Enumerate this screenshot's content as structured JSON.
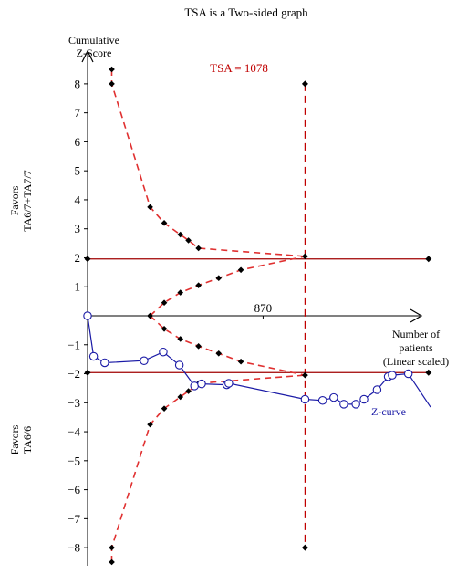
{
  "chart_data": {
    "type": "line",
    "title": "TSA is a Two-sided graph",
    "ylabel": "Cumulative Z-Score",
    "xlabel": "Number of patients (Linear scaled)",
    "xlabel_lines": [
      "Number of",
      "patients",
      "(Linear scaled)"
    ],
    "ylabel_lines": [
      "Cumulative",
      "Z-Score"
    ],
    "ylim": [
      -8.5,
      8.5
    ],
    "xlim": [
      0,
      1700
    ],
    "y_ticks": [
      8,
      7,
      6,
      5,
      4,
      3,
      2,
      1,
      -1,
      -2,
      -3,
      -4,
      -5,
      -6,
      -7,
      -8
    ],
    "x_tick_label": "870",
    "x_tick_value": 870,
    "tsa": {
      "label": "TSA = 1078",
      "value": 1078,
      "color": "#c00000"
    },
    "conventional_boundary": {
      "upper": 1.96,
      "lower": -1.96,
      "x_end": 1690,
      "color": "#a00000"
    },
    "favors_upper": [
      "Favors",
      "TA6/7+TA7/7"
    ],
    "favors_lower": [
      "Favors",
      "TA6/6"
    ],
    "upper_boundary": {
      "x": [
        120,
        120,
        310,
        380,
        460,
        500,
        550,
        1078
      ],
      "y": [
        8.5,
        8.0,
        3.75,
        3.2,
        2.8,
        2.6,
        2.33,
        2.05
      ]
    },
    "lower_boundary": {
      "x": [
        120,
        120,
        310,
        380,
        460,
        500,
        550,
        1078
      ],
      "y": [
        -8.5,
        -8.0,
        -3.75,
        -3.2,
        -2.8,
        -2.6,
        -2.33,
        -2.05
      ]
    },
    "futility_upper": {
      "x": [
        310,
        380,
        460,
        550,
        650,
        760,
        1078
      ],
      "y": [
        0.0,
        0.45,
        0.8,
        1.05,
        1.3,
        1.58,
        2.05
      ]
    },
    "futility_lower": {
      "x": [
        310,
        380,
        460,
        550,
        650,
        760,
        1078
      ],
      "y": [
        0.0,
        -0.45,
        -0.8,
        -1.05,
        -1.3,
        -1.58,
        -2.05
      ]
    },
    "z_curve": {
      "name": "Z-curve",
      "color": "#1a1aa6",
      "x": [
        0,
        30,
        85,
        280,
        375,
        455,
        530,
        565,
        690,
        700,
        1078,
        1165,
        1220,
        1270,
        1330,
        1370,
        1435,
        1490,
        1510,
        1590
      ],
      "y": [
        0.0,
        -1.4,
        -1.62,
        -1.55,
        -1.25,
        -1.7,
        -2.42,
        -2.35,
        -2.38,
        -2.33,
        -2.88,
        -2.92,
        -2.82,
        -3.05,
        -3.05,
        -2.88,
        -2.55,
        -2.1,
        -2.05,
        -2.0
      ]
    },
    "z_curve_end": {
      "x": 1700,
      "y": -3.15
    },
    "grid": false,
    "legend": "none"
  },
  "colors": {
    "boundary": "#e03030",
    "boundary_marker": "#000000",
    "axis": "#000000",
    "z_curve": "#1a1aa6"
  }
}
